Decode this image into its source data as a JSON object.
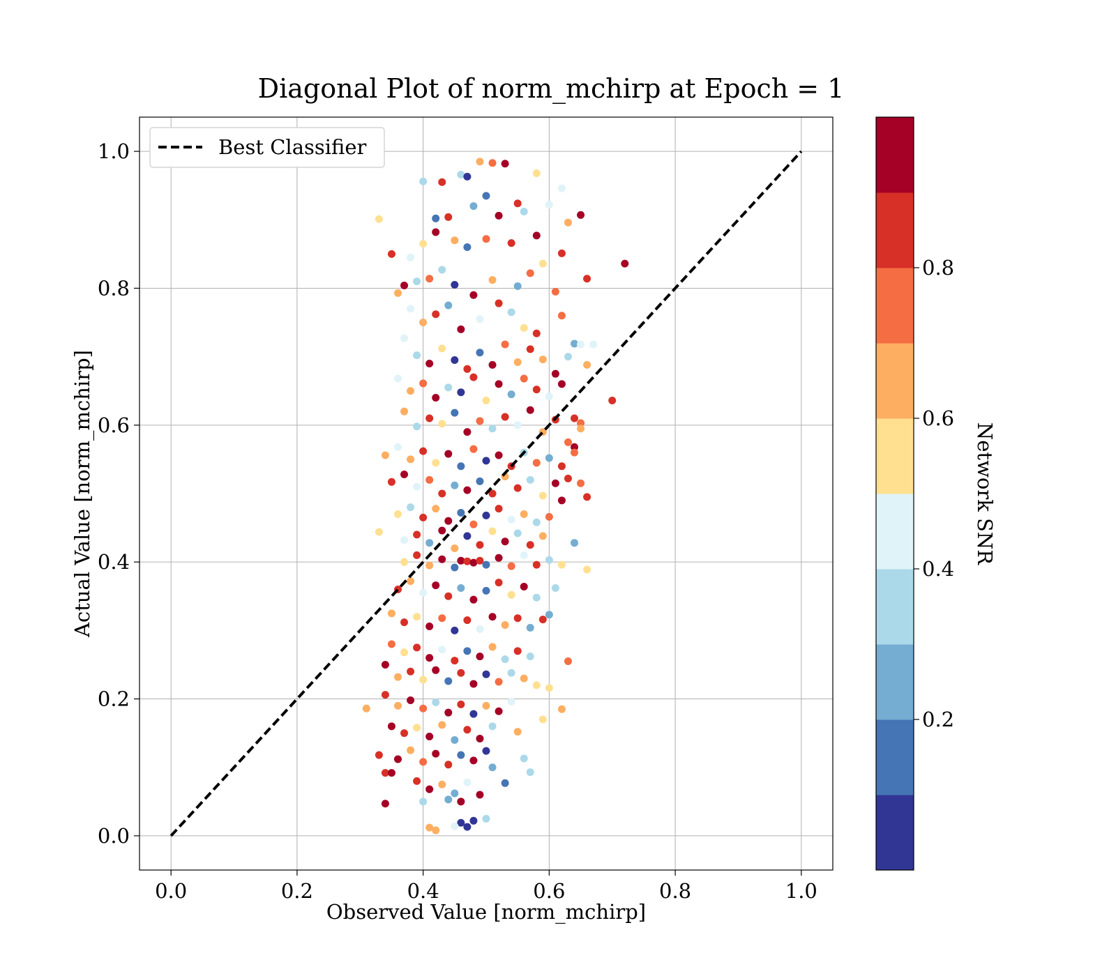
{
  "chart_data": {
    "type": "scatter",
    "title": "Diagonal Plot of norm_mchirp at Epoch = 1",
    "xlabel": "Observed Value [norm_mchirp]",
    "ylabel": "Actual Value [norm_mchirp]",
    "xlim": [
      -0.05,
      1.05
    ],
    "ylim": [
      -0.05,
      1.05
    ],
    "xticks": [
      "0.0",
      "0.2",
      "0.4",
      "0.6",
      "0.8",
      "1.0"
    ],
    "yticks": [
      "0.0",
      "0.2",
      "0.4",
      "0.6",
      "0.8",
      "1.0"
    ],
    "grid": true,
    "legend": {
      "location": "upper left",
      "entries": [
        "Best Classifier"
      ]
    },
    "reference_line": {
      "name": "Best Classifier",
      "style": "dashed",
      "color": "#000000",
      "x": [
        0.0,
        1.0
      ],
      "y": [
        0.0,
        1.0
      ]
    },
    "colorbar": {
      "label": "Network SNR",
      "ticks": [
        "0.2",
        "0.4",
        "0.6",
        "0.8"
      ],
      "tick_values": [
        0.2,
        0.4,
        0.6,
        0.8
      ],
      "range": [
        0.0,
        1.0
      ],
      "colors": [
        "#313695",
        "#4575b4",
        "#74add1",
        "#abd9e9",
        "#e0f3f8",
        "#fee090",
        "#fdae61",
        "#f46d43",
        "#d73027",
        "#a50026"
      ]
    },
    "points": [
      [
        0.4,
        0.956,
        0.35
      ],
      [
        0.43,
        0.955,
        0.85
      ],
      [
        0.46,
        0.966,
        0.35
      ],
      [
        0.47,
        0.963,
        0.05
      ],
      [
        0.49,
        0.985,
        0.65
      ],
      [
        0.51,
        0.983,
        0.75
      ],
      [
        0.53,
        0.982,
        0.95
      ],
      [
        0.5,
        0.935,
        0.15
      ],
      [
        0.58,
        0.968,
        0.55
      ],
      [
        0.62,
        0.946,
        0.45
      ],
      [
        0.33,
        0.901,
        0.55
      ],
      [
        0.42,
        0.902,
        0.15
      ],
      [
        0.44,
        0.904,
        0.85
      ],
      [
        0.52,
        0.906,
        0.95
      ],
      [
        0.56,
        0.912,
        0.35
      ],
      [
        0.6,
        0.922,
        0.45
      ],
      [
        0.65,
        0.907,
        0.95
      ],
      [
        0.55,
        0.924,
        0.85
      ],
      [
        0.48,
        0.92,
        0.25
      ],
      [
        0.45,
        0.87,
        0.65
      ],
      [
        0.35,
        0.85,
        0.85
      ],
      [
        0.38,
        0.845,
        0.45
      ],
      [
        0.4,
        0.865,
        0.55
      ],
      [
        0.42,
        0.882,
        0.95
      ],
      [
        0.47,
        0.86,
        0.15
      ],
      [
        0.5,
        0.872,
        0.75
      ],
      [
        0.54,
        0.866,
        0.85
      ],
      [
        0.58,
        0.877,
        0.95
      ],
      [
        0.62,
        0.851,
        0.85
      ],
      [
        0.63,
        0.896,
        0.65
      ],
      [
        0.66,
        0.814,
        0.85
      ],
      [
        0.72,
        0.836,
        0.95
      ],
      [
        0.37,
        0.804,
        0.95
      ],
      [
        0.36,
        0.793,
        0.65
      ],
      [
        0.39,
        0.81,
        0.35
      ],
      [
        0.41,
        0.814,
        0.75
      ],
      [
        0.43,
        0.827,
        0.35
      ],
      [
        0.45,
        0.805,
        0.05
      ],
      [
        0.48,
        0.79,
        0.95
      ],
      [
        0.51,
        0.812,
        0.65
      ],
      [
        0.55,
        0.803,
        0.25
      ],
      [
        0.57,
        0.822,
        0.75
      ],
      [
        0.59,
        0.836,
        0.55
      ],
      [
        0.61,
        0.795,
        0.75
      ],
      [
        0.38,
        0.77,
        0.45
      ],
      [
        0.4,
        0.75,
        0.65
      ],
      [
        0.42,
        0.762,
        0.85
      ],
      [
        0.44,
        0.775,
        0.25
      ],
      [
        0.46,
        0.74,
        0.95
      ],
      [
        0.49,
        0.755,
        0.45
      ],
      [
        0.52,
        0.778,
        0.85
      ],
      [
        0.54,
        0.765,
        0.35
      ],
      [
        0.56,
        0.742,
        0.55
      ],
      [
        0.58,
        0.734,
        0.85
      ],
      [
        0.62,
        0.76,
        0.75
      ],
      [
        0.64,
        0.719,
        0.25
      ],
      [
        0.65,
        0.718,
        0.45
      ],
      [
        0.67,
        0.718,
        0.45
      ],
      [
        0.37,
        0.727,
        0.45
      ],
      [
        0.39,
        0.702,
        0.35
      ],
      [
        0.41,
        0.69,
        0.95
      ],
      [
        0.43,
        0.712,
        0.55
      ],
      [
        0.45,
        0.695,
        0.05
      ],
      [
        0.47,
        0.682,
        0.85
      ],
      [
        0.49,
        0.706,
        0.15
      ],
      [
        0.51,
        0.688,
        0.95
      ],
      [
        0.53,
        0.718,
        0.75
      ],
      [
        0.55,
        0.692,
        0.65
      ],
      [
        0.57,
        0.711,
        0.85
      ],
      [
        0.59,
        0.696,
        0.65
      ],
      [
        0.61,
        0.675,
        0.95
      ],
      [
        0.63,
        0.7,
        0.35
      ],
      [
        0.66,
        0.688,
        0.65
      ],
      [
        0.7,
        0.636,
        0.85
      ],
      [
        0.36,
        0.668,
        0.45
      ],
      [
        0.38,
        0.65,
        0.65
      ],
      [
        0.4,
        0.661,
        0.75
      ],
      [
        0.42,
        0.64,
        0.95
      ],
      [
        0.44,
        0.655,
        0.35
      ],
      [
        0.46,
        0.648,
        0.05
      ],
      [
        0.48,
        0.67,
        0.85
      ],
      [
        0.5,
        0.636,
        0.55
      ],
      [
        0.52,
        0.66,
        0.95
      ],
      [
        0.54,
        0.645,
        0.25
      ],
      [
        0.56,
        0.668,
        0.75
      ],
      [
        0.58,
        0.652,
        0.85
      ],
      [
        0.6,
        0.642,
        0.45
      ],
      [
        0.62,
        0.66,
        0.95
      ],
      [
        0.65,
        0.603,
        0.75
      ],
      [
        0.37,
        0.62,
        0.65
      ],
      [
        0.39,
        0.598,
        0.35
      ],
      [
        0.41,
        0.61,
        0.85
      ],
      [
        0.43,
        0.602,
        0.55
      ],
      [
        0.45,
        0.618,
        0.15
      ],
      [
        0.47,
        0.59,
        0.95
      ],
      [
        0.49,
        0.606,
        0.75
      ],
      [
        0.51,
        0.595,
        0.35
      ],
      [
        0.53,
        0.612,
        0.85
      ],
      [
        0.55,
        0.6,
        0.45
      ],
      [
        0.57,
        0.622,
        0.95
      ],
      [
        0.59,
        0.59,
        0.65
      ],
      [
        0.61,
        0.608,
        0.85
      ],
      [
        0.64,
        0.61,
        0.85
      ],
      [
        0.63,
        0.575,
        0.75
      ],
      [
        0.64,
        0.568,
        0.95
      ],
      [
        0.65,
        0.595,
        0.65
      ],
      [
        0.34,
        0.556,
        0.65
      ],
      [
        0.36,
        0.568,
        0.45
      ],
      [
        0.38,
        0.55,
        0.65
      ],
      [
        0.4,
        0.562,
        0.85
      ],
      [
        0.42,
        0.545,
        0.55
      ],
      [
        0.44,
        0.558,
        0.95
      ],
      [
        0.46,
        0.54,
        0.15
      ],
      [
        0.48,
        0.565,
        0.75
      ],
      [
        0.5,
        0.548,
        0.05
      ],
      [
        0.52,
        0.556,
        0.95
      ],
      [
        0.54,
        0.54,
        0.85
      ],
      [
        0.56,
        0.56,
        0.35
      ],
      [
        0.58,
        0.545,
        0.75
      ],
      [
        0.6,
        0.552,
        0.25
      ],
      [
        0.62,
        0.54,
        0.85
      ],
      [
        0.64,
        0.56,
        0.75
      ],
      [
        0.35,
        0.517,
        0.85
      ],
      [
        0.37,
        0.528,
        0.95
      ],
      [
        0.39,
        0.51,
        0.45
      ],
      [
        0.41,
        0.52,
        0.75
      ],
      [
        0.43,
        0.5,
        0.85
      ],
      [
        0.45,
        0.512,
        0.25
      ],
      [
        0.47,
        0.505,
        0.95
      ],
      [
        0.49,
        0.518,
        0.15
      ],
      [
        0.51,
        0.5,
        0.85
      ],
      [
        0.53,
        0.525,
        0.65
      ],
      [
        0.55,
        0.508,
        0.85
      ],
      [
        0.57,
        0.52,
        0.35
      ],
      [
        0.59,
        0.497,
        0.55
      ],
      [
        0.61,
        0.515,
        0.95
      ],
      [
        0.63,
        0.522,
        0.85
      ],
      [
        0.65,
        0.515,
        0.75
      ],
      [
        0.66,
        0.495,
        0.85
      ],
      [
        0.62,
        0.49,
        0.95
      ],
      [
        0.36,
        0.47,
        0.55
      ],
      [
        0.38,
        0.48,
        0.35
      ],
      [
        0.4,
        0.465,
        0.85
      ],
      [
        0.42,
        0.478,
        0.65
      ],
      [
        0.44,
        0.46,
        0.95
      ],
      [
        0.46,
        0.472,
        0.15
      ],
      [
        0.48,
        0.455,
        0.75
      ],
      [
        0.5,
        0.468,
        0.05
      ],
      [
        0.52,
        0.478,
        0.85
      ],
      [
        0.54,
        0.462,
        0.45
      ],
      [
        0.56,
        0.47,
        0.65
      ],
      [
        0.58,
        0.458,
        0.35
      ],
      [
        0.6,
        0.466,
        0.75
      ],
      [
        0.33,
        0.444,
        0.55
      ],
      [
        0.37,
        0.432,
        0.45
      ],
      [
        0.39,
        0.44,
        0.85
      ],
      [
        0.41,
        0.428,
        0.25
      ],
      [
        0.43,
        0.446,
        0.95
      ],
      [
        0.45,
        0.42,
        0.65
      ],
      [
        0.47,
        0.438,
        0.05
      ],
      [
        0.49,
        0.425,
        0.85
      ],
      [
        0.51,
        0.445,
        0.55
      ],
      [
        0.53,
        0.43,
        0.95
      ],
      [
        0.55,
        0.442,
        0.35
      ],
      [
        0.57,
        0.425,
        0.85
      ],
      [
        0.59,
        0.438,
        0.65
      ],
      [
        0.64,
        0.428,
        0.25
      ],
      [
        0.37,
        0.4,
        0.55
      ],
      [
        0.39,
        0.41,
        0.85
      ],
      [
        0.41,
        0.395,
        0.65
      ],
      [
        0.43,
        0.404,
        0.95
      ],
      [
        0.45,
        0.392,
        0.15
      ],
      [
        0.46,
        0.402,
        0.95
      ],
      [
        0.47,
        0.401,
        0.85
      ],
      [
        0.48,
        0.399,
        0.95
      ],
      [
        0.49,
        0.402,
        0.85
      ],
      [
        0.5,
        0.396,
        0.15
      ],
      [
        0.52,
        0.406,
        0.95
      ],
      [
        0.54,
        0.394,
        0.75
      ],
      [
        0.56,
        0.41,
        0.45
      ],
      [
        0.58,
        0.396,
        0.85
      ],
      [
        0.6,
        0.403,
        0.35
      ],
      [
        0.62,
        0.396,
        0.55
      ],
      [
        0.66,
        0.389,
        0.55
      ],
      [
        0.36,
        0.36,
        0.85
      ],
      [
        0.38,
        0.372,
        0.65
      ],
      [
        0.4,
        0.355,
        0.45
      ],
      [
        0.42,
        0.366,
        0.95
      ],
      [
        0.44,
        0.35,
        0.85
      ],
      [
        0.46,
        0.362,
        0.25
      ],
      [
        0.48,
        0.345,
        0.95
      ],
      [
        0.5,
        0.358,
        0.15
      ],
      [
        0.52,
        0.37,
        0.85
      ],
      [
        0.54,
        0.352,
        0.55
      ],
      [
        0.56,
        0.364,
        0.95
      ],
      [
        0.58,
        0.348,
        0.35
      ],
      [
        0.61,
        0.362,
        0.35
      ],
      [
        0.35,
        0.325,
        0.65
      ],
      [
        0.37,
        0.312,
        0.85
      ],
      [
        0.39,
        0.32,
        0.55
      ],
      [
        0.41,
        0.306,
        0.95
      ],
      [
        0.43,
        0.318,
        0.75
      ],
      [
        0.45,
        0.3,
        0.05
      ],
      [
        0.47,
        0.315,
        0.85
      ],
      [
        0.49,
        0.302,
        0.45
      ],
      [
        0.51,
        0.32,
        0.95
      ],
      [
        0.53,
        0.308,
        0.65
      ],
      [
        0.55,
        0.318,
        0.85
      ],
      [
        0.57,
        0.304,
        0.25
      ],
      [
        0.59,
        0.316,
        0.85
      ],
      [
        0.6,
        0.323,
        0.25
      ],
      [
        0.35,
        0.28,
        0.75
      ],
      [
        0.37,
        0.268,
        0.55
      ],
      [
        0.39,
        0.275,
        0.85
      ],
      [
        0.41,
        0.26,
        0.95
      ],
      [
        0.43,
        0.272,
        0.45
      ],
      [
        0.45,
        0.256,
        0.85
      ],
      [
        0.47,
        0.27,
        0.15
      ],
      [
        0.49,
        0.262,
        0.95
      ],
      [
        0.51,
        0.276,
        0.65
      ],
      [
        0.53,
        0.258,
        0.35
      ],
      [
        0.55,
        0.27,
        0.85
      ],
      [
        0.57,
        0.262,
        0.35
      ],
      [
        0.63,
        0.255,
        0.75
      ],
      [
        0.34,
        0.25,
        0.95
      ],
      [
        0.36,
        0.232,
        0.65
      ],
      [
        0.38,
        0.24,
        0.85
      ],
      [
        0.4,
        0.228,
        0.55
      ],
      [
        0.42,
        0.242,
        0.95
      ],
      [
        0.44,
        0.226,
        0.15
      ],
      [
        0.46,
        0.238,
        0.85
      ],
      [
        0.48,
        0.222,
        0.95
      ],
      [
        0.5,
        0.236,
        0.05
      ],
      [
        0.52,
        0.225,
        0.75
      ],
      [
        0.54,
        0.238,
        0.35
      ],
      [
        0.56,
        0.23,
        0.65
      ],
      [
        0.58,
        0.22,
        0.55
      ],
      [
        0.6,
        0.216,
        0.55
      ],
      [
        0.34,
        0.206,
        0.85
      ],
      [
        0.36,
        0.19,
        0.65
      ],
      [
        0.38,
        0.198,
        0.95
      ],
      [
        0.4,
        0.186,
        0.75
      ],
      [
        0.42,
        0.195,
        0.35
      ],
      [
        0.44,
        0.18,
        0.95
      ],
      [
        0.46,
        0.192,
        0.85
      ],
      [
        0.48,
        0.178,
        0.05
      ],
      [
        0.5,
        0.19,
        0.65
      ],
      [
        0.52,
        0.182,
        0.95
      ],
      [
        0.54,
        0.196,
        0.45
      ],
      [
        0.31,
        0.186,
        0.65
      ],
      [
        0.62,
        0.185,
        0.65
      ],
      [
        0.35,
        0.16,
        0.95
      ],
      [
        0.37,
        0.15,
        0.85
      ],
      [
        0.39,
        0.158,
        0.55
      ],
      [
        0.41,
        0.145,
        0.95
      ],
      [
        0.43,
        0.162,
        0.65
      ],
      [
        0.45,
        0.14,
        0.25
      ],
      [
        0.47,
        0.155,
        0.85
      ],
      [
        0.49,
        0.142,
        0.95
      ],
      [
        0.51,
        0.16,
        0.35
      ],
      [
        0.55,
        0.152,
        0.65
      ],
      [
        0.59,
        0.17,
        0.55
      ],
      [
        0.33,
        0.118,
        0.85
      ],
      [
        0.36,
        0.112,
        0.95
      ],
      [
        0.38,
        0.125,
        0.65
      ],
      [
        0.4,
        0.108,
        0.75
      ],
      [
        0.42,
        0.12,
        0.95
      ],
      [
        0.44,
        0.104,
        0.85
      ],
      [
        0.46,
        0.118,
        0.15
      ],
      [
        0.48,
        0.11,
        0.95
      ],
      [
        0.5,
        0.124,
        0.05
      ],
      [
        0.51,
        0.1,
        0.25
      ],
      [
        0.56,
        0.113,
        0.35
      ],
      [
        0.34,
        0.092,
        0.85
      ],
      [
        0.35,
        0.092,
        0.95
      ],
      [
        0.39,
        0.08,
        0.85
      ],
      [
        0.41,
        0.068,
        0.95
      ],
      [
        0.43,
        0.075,
        0.65
      ],
      [
        0.45,
        0.062,
        0.25
      ],
      [
        0.47,
        0.078,
        0.45
      ],
      [
        0.49,
        0.06,
        0.95
      ],
      [
        0.53,
        0.077,
        0.15
      ],
      [
        0.57,
        0.093,
        0.35
      ],
      [
        0.34,
        0.047,
        0.95
      ],
      [
        0.4,
        0.05,
        0.35
      ],
      [
        0.44,
        0.053,
        0.25
      ],
      [
        0.46,
        0.05,
        0.95
      ],
      [
        0.48,
        0.022,
        0.05
      ],
      [
        0.5,
        0.025,
        0.35
      ],
      [
        0.41,
        0.012,
        0.65
      ],
      [
        0.42,
        0.008,
        0.65
      ],
      [
        0.46,
        0.019,
        0.05
      ],
      [
        0.47,
        0.013,
        0.05
      ],
      [
        0.45,
        0.014,
        0.45
      ]
    ]
  }
}
